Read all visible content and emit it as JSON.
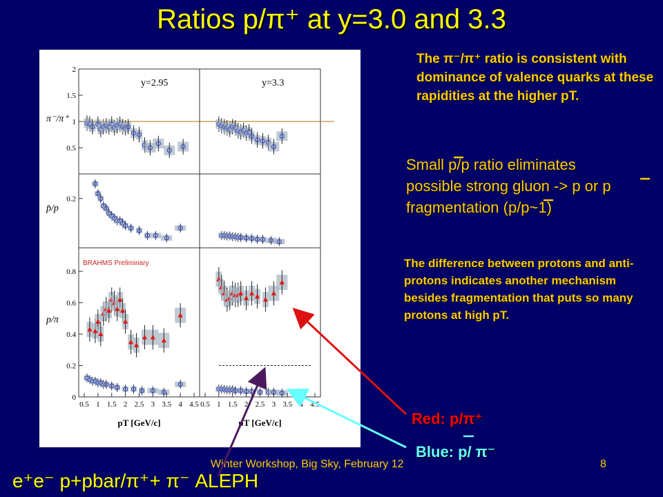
{
  "slide": {
    "title": "Ratios p/π⁺ at y=3.0 and 3.3",
    "note_valence": "The π⁻/π⁺ ratio is consistent with dominance of valence quarks at these rapidities at the higher pT.",
    "note_gluon_line1": "Small p/p ratio eliminates",
    "note_gluon_line2": "possible strong gluon -> p or p",
    "note_gluon_line3": "fragmentation (p/p~1)",
    "note_protons": "The difference between protons and anti-protons indicates another mechanism besides fragmentation that puts so many protons at high pT.",
    "legend_red": "Red: p/π⁺",
    "legend_blue": "Blue: p/ π⁻",
    "footer": "Winter Workshop, Big Sky, February 12",
    "page_number": "8",
    "aleph_label": "e⁺e⁻ p+pbar/π⁺+ π⁻ ALEPH"
  },
  "colors": {
    "background": "#000066",
    "title": "#ffff00",
    "text": "#ffcc00",
    "red": "#ff0000",
    "blue": "#66ffff",
    "arrow_red": "#dd1111",
    "arrow_cyan": "#66ffff",
    "arrow_purple": "#4b1a5c",
    "marker_blue": "#3d4fc9",
    "marker_red": "#dd1a1a",
    "error_box": "#aab8c4",
    "reference_line": "#b07000"
  },
  "chart_data": {
    "type": "scatter",
    "xlabel": "pT [GeV/c]",
    "xlim": [
      0.3,
      4.7
    ],
    "xticks": [
      "0.5",
      "1",
      "1.5",
      "2",
      "2.5",
      "3",
      "3.5",
      "4",
      "4.5"
    ],
    "brahms_label": "BRAHMS Preliminary",
    "panels": [
      {
        "row": 0,
        "col": 0,
        "rapidity": "y=2.95",
        "ylabel": "π⁻/π⁺",
        "ylim": [
          0,
          2
        ],
        "yticks": [
          "0.5",
          "1",
          "1.5",
          "2"
        ],
        "reference_line": 1.0,
        "series": [
          {
            "name": "π⁻/π⁺",
            "marker": "open-blue",
            "x": [
              0.6,
              0.7,
              0.8,
              1.0,
              1.1,
              1.2,
              1.3,
              1.4,
              1.5,
              1.6,
              1.7,
              1.8,
              1.9,
              2.0,
              2.1,
              2.3,
              2.5,
              2.7,
              2.9,
              3.2,
              3.6,
              4.1
            ],
            "y": [
              0.97,
              0.95,
              0.9,
              0.95,
              0.85,
              0.9,
              0.92,
              0.9,
              0.95,
              0.88,
              0.92,
              0.95,
              0.9,
              0.88,
              0.9,
              0.78,
              0.75,
              0.55,
              0.5,
              0.58,
              0.45,
              0.52
            ]
          }
        ]
      },
      {
        "row": 0,
        "col": 1,
        "rapidity": "y=3.3",
        "ylabel": "",
        "ylim": [
          0,
          2
        ],
        "yticks": [],
        "reference_line": 1.0,
        "series": [
          {
            "name": "π⁻/π⁺",
            "marker": "open-blue",
            "x": [
              1.0,
              1.1,
              1.2,
              1.3,
              1.4,
              1.5,
              1.6,
              1.7,
              1.8,
              1.9,
              2.0,
              2.1,
              2.2,
              2.4,
              2.6,
              2.8,
              3.0,
              3.3
            ],
            "y": [
              0.95,
              0.92,
              0.9,
              0.88,
              0.85,
              0.9,
              0.88,
              0.82,
              0.8,
              0.83,
              0.78,
              0.8,
              0.72,
              0.65,
              0.63,
              0.6,
              0.52,
              0.72
            ]
          }
        ]
      },
      {
        "row": 1,
        "col": 0,
        "rapidity": "",
        "ylabel": "p̄/p",
        "ylim": [
          0,
          0.3
        ],
        "yticks": [
          "0.2"
        ],
        "series": [
          {
            "name": "p̄/p",
            "marker": "open-blue",
            "x": [
              0.9,
              1.0,
              1.1,
              1.2,
              1.3,
              1.4,
              1.5,
              1.6,
              1.7,
              1.8,
              1.9,
              2.0,
              2.2,
              2.5,
              2.8,
              3.1,
              3.5,
              4.0
            ],
            "y": [
              0.26,
              0.22,
              0.2,
              0.17,
              0.16,
              0.14,
              0.13,
              0.12,
              0.11,
              0.11,
              0.1,
              0.09,
              0.08,
              0.07,
              0.05,
              0.05,
              0.04,
              0.08
            ]
          }
        ]
      },
      {
        "row": 1,
        "col": 1,
        "rapidity": "",
        "ylabel": "",
        "ylim": [
          0,
          0.3
        ],
        "yticks": [],
        "series": [
          {
            "name": "p̄/p",
            "marker": "open-blue",
            "x": [
              1.1,
              1.2,
              1.3,
              1.4,
              1.5,
              1.6,
              1.7,
              1.8,
              2.0,
              2.2,
              2.4,
              2.6,
              2.9,
              3.2
            ],
            "y": [
              0.05,
              0.05,
              0.048,
              0.048,
              0.045,
              0.045,
              0.042,
              0.042,
              0.04,
              0.038,
              0.035,
              0.034,
              0.03,
              0.025
            ]
          }
        ]
      },
      {
        "row": 2,
        "col": 0,
        "rapidity": "",
        "ylabel": "p/π",
        "ylim": [
          0,
          0.95
        ],
        "yticks": [
          "0",
          "0.2",
          "0.4",
          "0.6",
          "0.8"
        ],
        "series": [
          {
            "name": "p/π⁺",
            "marker": "filled-red",
            "x": [
              0.7,
              0.9,
              1.0,
              1.1,
              1.2,
              1.3,
              1.4,
              1.5,
              1.6,
              1.7,
              1.8,
              1.9,
              2.0,
              2.2,
              2.4,
              2.7,
              3.0,
              3.4,
              4.0
            ],
            "y": [
              0.43,
              0.42,
              0.48,
              0.4,
              0.53,
              0.56,
              0.55,
              0.62,
              0.6,
              0.56,
              0.62,
              0.55,
              0.48,
              0.35,
              0.33,
              0.38,
              0.38,
              0.36,
              0.52
            ]
          },
          {
            "name": "p̄/π⁻",
            "marker": "open-blue",
            "x": [
              0.6,
              0.7,
              0.8,
              0.9,
              1.0,
              1.1,
              1.2,
              1.3,
              1.5,
              1.7,
              2.0,
              2.3,
              2.6,
              3.0,
              3.4,
              4.0
            ],
            "y": [
              0.12,
              0.11,
              0.1,
              0.1,
              0.09,
              0.09,
              0.08,
              0.08,
              0.07,
              0.06,
              0.05,
              0.05,
              0.04,
              0.04,
              0.03,
              0.08
            ]
          }
        ]
      },
      {
        "row": 2,
        "col": 1,
        "rapidity": "",
        "ylabel": "",
        "ylim": [
          0,
          0.95
        ],
        "yticks": [],
        "dashed_reference": 0.2,
        "series": [
          {
            "name": "p/π⁺",
            "marker": "filled-red",
            "x": [
              1.0,
              1.1,
              1.2,
              1.3,
              1.4,
              1.5,
              1.6,
              1.7,
              1.8,
              2.0,
              2.2,
              2.4,
              2.7,
              3.0,
              3.3
            ],
            "y": [
              0.75,
              0.7,
              0.66,
              0.62,
              0.63,
              0.66,
              0.65,
              0.65,
              0.66,
              0.63,
              0.66,
              0.64,
              0.62,
              0.66,
              0.73
            ]
          },
          {
            "name": "p̄/π⁻",
            "marker": "open-blue",
            "x": [
              1.0,
              1.1,
              1.2,
              1.3,
              1.4,
              1.5,
              1.6,
              1.8,
              2.0,
              2.2,
              2.5,
              2.8,
              3.0,
              3.3
            ],
            "y": [
              0.05,
              0.05,
              0.048,
              0.045,
              0.045,
              0.045,
              0.04,
              0.04,
              0.035,
              0.035,
              0.03,
              0.03,
              0.03,
              0.025
            ]
          }
        ]
      }
    ]
  }
}
